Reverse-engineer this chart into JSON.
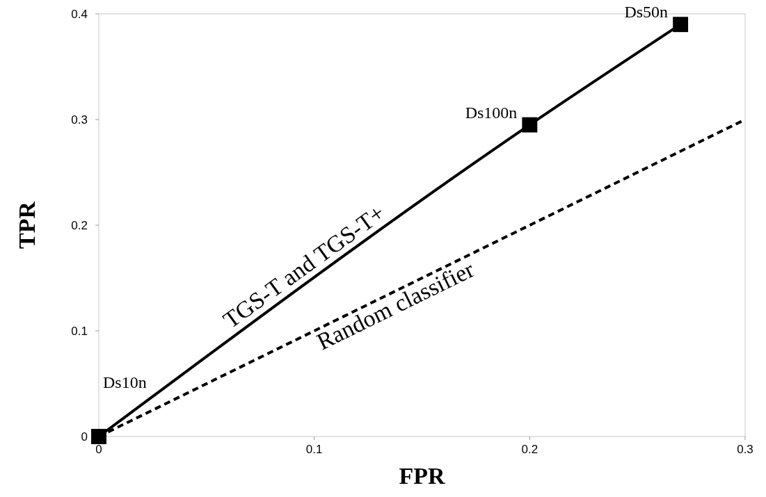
{
  "chart_data": {
    "type": "line",
    "xlabel": "FPR",
    "ylabel": "TPR",
    "xlim": [
      0,
      0.3
    ],
    "ylim": [
      0,
      0.4
    ],
    "xticks": [
      0,
      0.1,
      0.2,
      0.3
    ],
    "yticks": [
      0,
      0.1,
      0.2,
      0.3,
      0.4
    ],
    "grid": false,
    "series": [
      {
        "name": "TGS-T and TGS-T+",
        "color": "#000000",
        "x": [
          0,
          0.2,
          0.27
        ],
        "values": [
          0,
          0.295,
          0.39
        ],
        "marker": "square",
        "line_style": "solid"
      },
      {
        "name": "Random classifier",
        "color": "#000000",
        "x": [
          0,
          0.3
        ],
        "values": [
          0,
          0.3
        ],
        "marker": "none",
        "line_style": "dashed"
      }
    ],
    "annotations": [
      {
        "text": "Ds10n",
        "x": 0,
        "y": 0
      },
      {
        "text": "Ds100n",
        "x": 0.2,
        "y": 0.295
      },
      {
        "text": "Ds50n",
        "x": 0.27,
        "y": 0.39
      }
    ]
  }
}
